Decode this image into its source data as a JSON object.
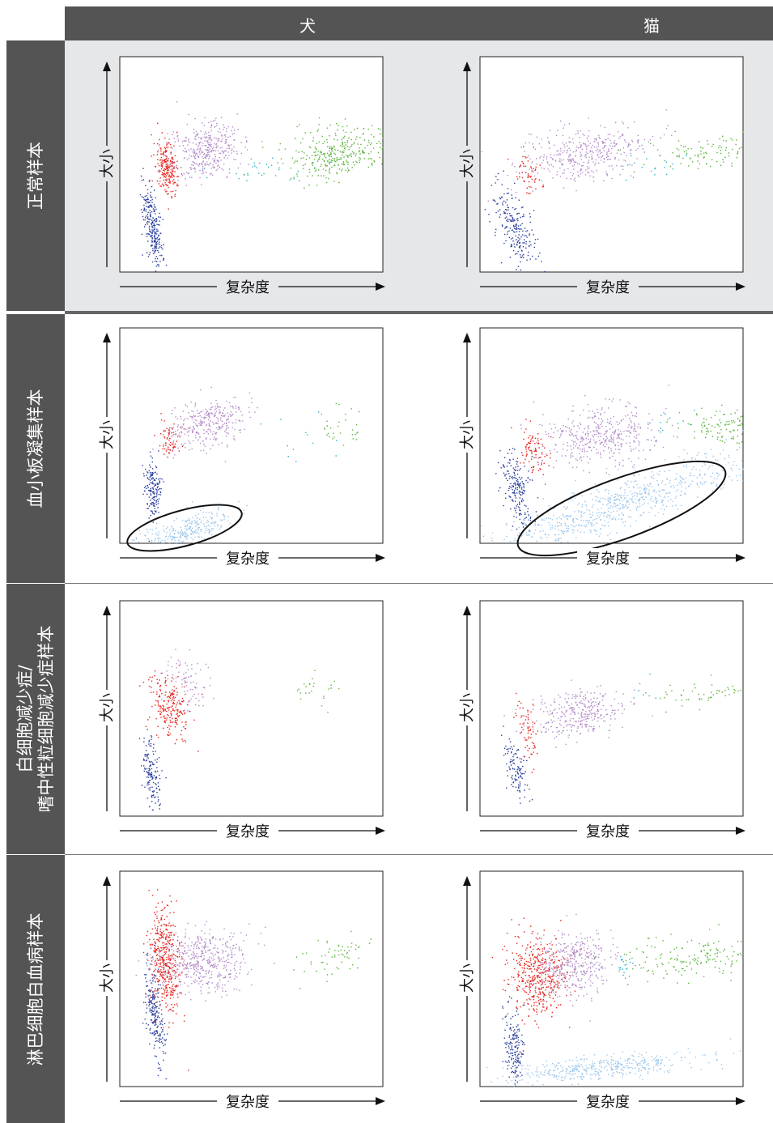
{
  "columns": [
    "犬",
    "猫"
  ],
  "rows": [
    {
      "label": "正常样本"
    },
    {
      "label": "血小板凝集样本"
    },
    {
      "label_lines": [
        "白细胞减少症/",
        "嗜中性粒细胞减少症样本"
      ]
    },
    {
      "label": "淋巴细胞白血病样本"
    }
  ],
  "axis": {
    "x": "复杂度",
    "y": "大小"
  },
  "colors": {
    "header_bg": "#545454",
    "row1_bg": "#e6e7e9",
    "erythrocyte_blue": "#2a3f9c",
    "reticulocyte_red": "#e8241c",
    "neutrophil_purple": "#b28cc8",
    "cyan": "#2ab3cc",
    "eosinophil_green": "#5ab43a",
    "platelet_light_blue": "#9cc6ec"
  }
}
